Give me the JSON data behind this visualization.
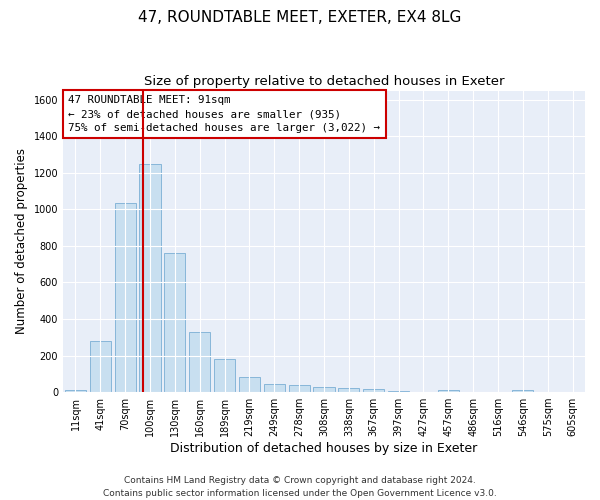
{
  "title1": "47, ROUNDTABLE MEET, EXETER, EX4 8LG",
  "title2": "Size of property relative to detached houses in Exeter",
  "xlabel": "Distribution of detached houses by size in Exeter",
  "ylabel": "Number of detached properties",
  "bar_labels": [
    "11sqm",
    "41sqm",
    "70sqm",
    "100sqm",
    "130sqm",
    "160sqm",
    "189sqm",
    "219sqm",
    "249sqm",
    "278sqm",
    "308sqm",
    "338sqm",
    "367sqm",
    "397sqm",
    "427sqm",
    "457sqm",
    "486sqm",
    "516sqm",
    "546sqm",
    "575sqm",
    "605sqm"
  ],
  "bar_values": [
    10,
    280,
    1035,
    1250,
    760,
    330,
    180,
    80,
    45,
    40,
    30,
    22,
    15,
    5,
    0,
    10,
    0,
    0,
    10,
    0,
    0
  ],
  "bar_color": "#c8dff0",
  "bar_edge_color": "#7aafd4",
  "bg_color": "#e8eef8",
  "grid_color": "#ffffff",
  "vline_color": "#cc0000",
  "vline_pos": 2.7,
  "annotation_text": "47 ROUNDTABLE MEET: 91sqm\n← 23% of detached houses are smaller (935)\n75% of semi-detached houses are larger (3,022) →",
  "annotation_box_color": "#cc0000",
  "ylim": [
    0,
    1650
  ],
  "yticks": [
    0,
    200,
    400,
    600,
    800,
    1000,
    1200,
    1400,
    1600
  ],
  "footer": "Contains HM Land Registry data © Crown copyright and database right 2024.\nContains public sector information licensed under the Open Government Licence v3.0.",
  "title1_fontsize": 11,
  "title2_fontsize": 9.5,
  "xlabel_fontsize": 9,
  "ylabel_fontsize": 8.5,
  "annotation_fontsize": 7.8,
  "footer_fontsize": 6.5,
  "tick_fontsize": 7
}
